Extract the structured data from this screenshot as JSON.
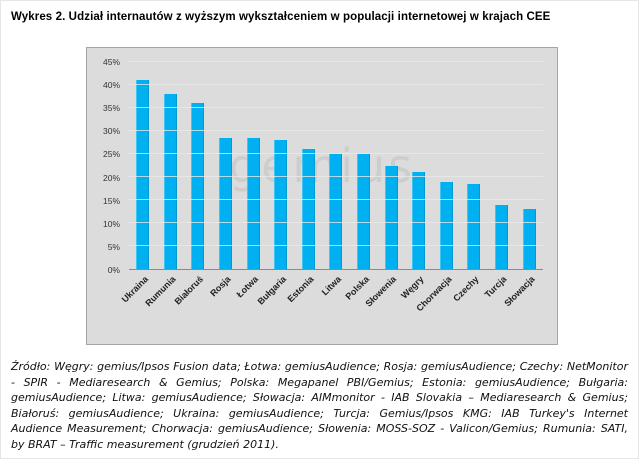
{
  "page": {
    "title": "Wykres 2. Udział internautów z wyższym wykształceniem w populacji internetowej w krajach CEE"
  },
  "chart_data": {
    "type": "bar",
    "title": "Wykres 2. Udział internautów z wyższym wykształceniem w populacji internetowej w krajach CEE",
    "categories": [
      "Ukraina",
      "Rumunia",
      "Białoruś",
      "Rosja",
      "Łotwa",
      "Bułgaria",
      "Estonia",
      "Litwa",
      "Polska",
      "Słowenia",
      "Węgry",
      "Chorwacja",
      "Czechy",
      "Turcja",
      "Słowacja"
    ],
    "values": [
      41,
      38,
      36,
      28.5,
      28.5,
      28,
      26,
      25,
      25,
      22.5,
      21,
      19,
      18.5,
      14,
      13
    ],
    "xlabel": "",
    "ylabel": "",
    "ylim": [
      0,
      45
    ],
    "ytick_labels": [
      "0%",
      "5%",
      "10%",
      "15%",
      "20%",
      "25%",
      "30%",
      "35%",
      "40%",
      "45%"
    ],
    "grid": true,
    "legend": "none",
    "bar_color": "#00b0f0",
    "plot_background": "#dcdcdc",
    "watermark": "gemius"
  },
  "source": "Źródło: Węgry: gemius/Ipsos Fusion data;  Łotwa: gemiusAudience; Rosja: gemiusAudience; Czechy: NetMonitor - SPIR - Mediaresearch & Gemius; Polska: Megapanel PBI/Gemius; Estonia: gemiusAudience; Bułgaria: gemiusAudience; Litwa: gemiusAudience;  Słowacja: AIMmonitor -  IAB Slovakia – Mediaresearch & Gemius;  Białoruś: gemiusAudience;  Ukraina: gemiusAudience; Turcja: Gemius/Ipsos KMG: IAB Turkey's Internet Audience Measurement;  Chorwacja: gemiusAudience;  Słowenia: MOSS-SOZ - Valicon/Gemius; Rumunia: SATI, by BRAT – Traffic measurement (grudzień 2011)."
}
